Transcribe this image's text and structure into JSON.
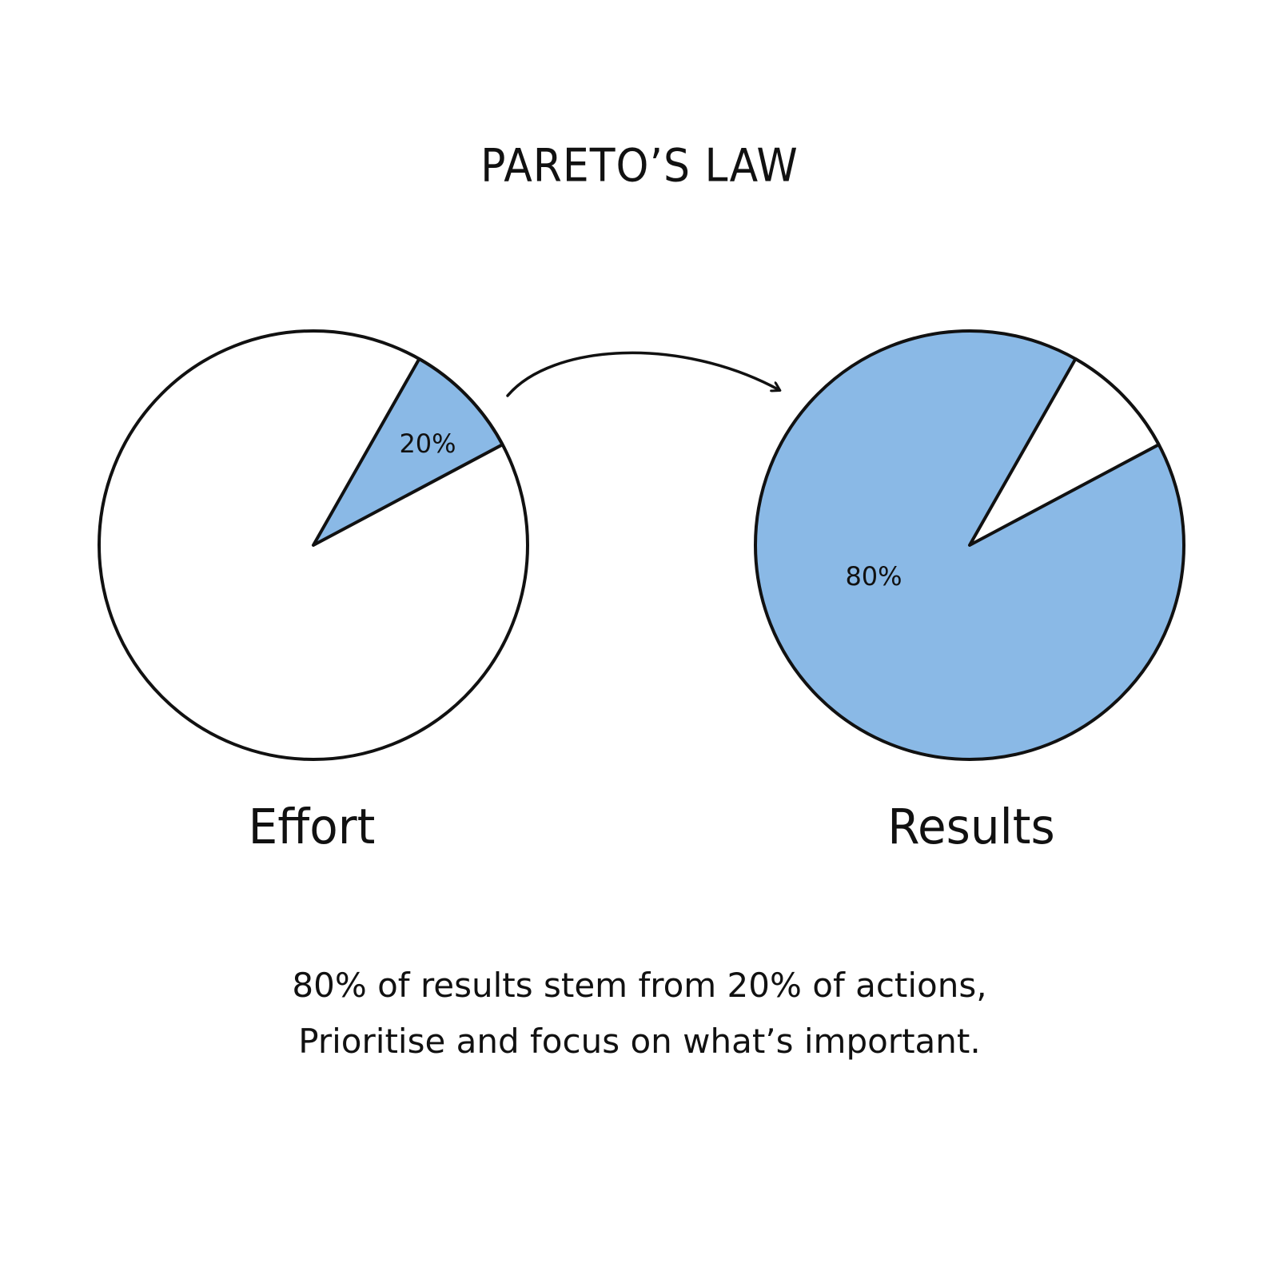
{
  "title": "PARETO’S LAW",
  "colors": {
    "fill": "#8ab9e6",
    "outline": "#111111",
    "background": "#ffffff"
  },
  "pies": [
    {
      "label": "Effort",
      "highlight_fraction": 0.2,
      "highlight_label": "20%"
    },
    {
      "label": "Results",
      "highlight_fraction": 0.8,
      "highlight_label": "80%"
    }
  ],
  "caption": {
    "line1": "80% of results stem from 20% of actions,",
    "line2": "Prioritise and focus on what’s important."
  }
}
